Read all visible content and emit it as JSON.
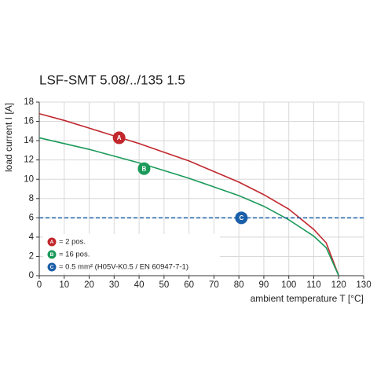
{
  "chart_data": {
    "type": "line",
    "title": "LSF-SMT 5.08/../135 1.5",
    "x_label": "ambient temperature T [°C]",
    "y_label": "load current I [A]",
    "xlim": [
      0,
      130
    ],
    "ylim": [
      0,
      18
    ],
    "xticks": [
      0,
      10,
      20,
      30,
      40,
      50,
      60,
      70,
      80,
      90,
      100,
      110,
      120,
      130
    ],
    "yticks": [
      0,
      2,
      4,
      6,
      8,
      10,
      12,
      14,
      16,
      18
    ],
    "grid": true,
    "series": [
      {
        "name": "= 2 pos.",
        "color": "#c1272d",
        "dashed": false,
        "x": [
          0,
          10,
          20,
          30,
          40,
          50,
          60,
          70,
          80,
          90,
          100,
          110,
          115,
          120
        ],
        "values": [
          16.8,
          16.1,
          15.3,
          14.5,
          13.7,
          12.8,
          11.9,
          10.8,
          9.7,
          8.4,
          6.9,
          4.8,
          3.4,
          0
        ],
        "marker": {
          "label": "A",
          "x": 32,
          "y": 14.3
        }
      },
      {
        "name": "= 16 pos.",
        "color": "#1b9a5a",
        "dashed": false,
        "x": [
          0,
          10,
          20,
          30,
          40,
          50,
          60,
          70,
          80,
          90,
          100,
          110,
          115,
          120
        ],
        "values": [
          14.3,
          13.7,
          13.1,
          12.4,
          11.7,
          10.9,
          10.1,
          9.2,
          8.3,
          7.2,
          5.8,
          4.1,
          2.9,
          0
        ],
        "marker": {
          "label": "B",
          "x": 42,
          "y": 11.1
        }
      },
      {
        "name": "= 0.5 mm² (H05V-K0.5 / EN 60947-7-1)",
        "color": "#1a5fa8",
        "dashed": true,
        "x": [
          0,
          130
        ],
        "values": [
          6,
          6
        ],
        "marker": {
          "label": "C",
          "x": 81,
          "y": 6
        }
      }
    ]
  }
}
